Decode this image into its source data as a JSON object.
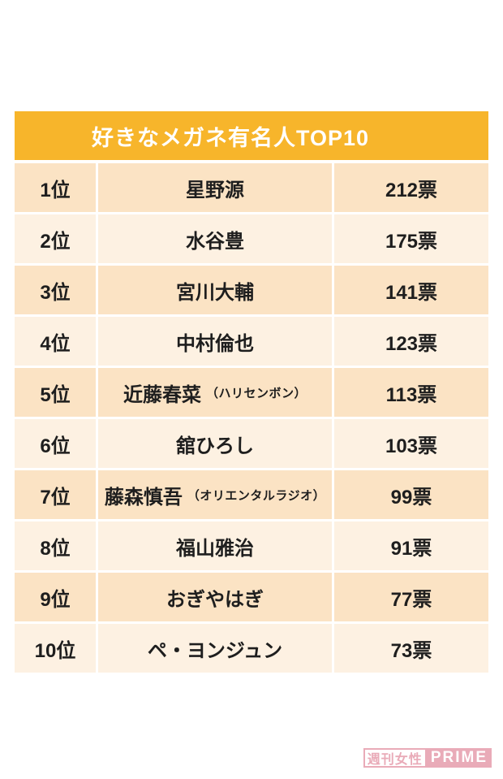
{
  "table": {
    "title": "好きなメガネ有名人TOP10",
    "rows": [
      {
        "rank": "1位",
        "name": "星野源",
        "note": "",
        "votes": "212票"
      },
      {
        "rank": "2位",
        "name": "水谷豊",
        "note": "",
        "votes": "175票"
      },
      {
        "rank": "3位",
        "name": "宮川大輔",
        "note": "",
        "votes": "141票"
      },
      {
        "rank": "4位",
        "name": "中村倫也",
        "note": "",
        "votes": "123票"
      },
      {
        "rank": "5位",
        "name": "近藤春菜",
        "note": "（ハリセンボン）",
        "votes": "113票"
      },
      {
        "rank": "6位",
        "name": "舘ひろし",
        "note": "",
        "votes": "103票"
      },
      {
        "rank": "7位",
        "name": "藤森慎吾",
        "note": "（オリエンタルラジオ）",
        "votes": "99票"
      },
      {
        "rank": "8位",
        "name": "福山雅治",
        "note": "",
        "votes": "91票"
      },
      {
        "rank": "9位",
        "name": "おぎやはぎ",
        "note": "",
        "votes": "77票"
      },
      {
        "rank": "10位",
        "name": "ペ・ヨンジュン",
        "note": "",
        "votes": "73票"
      }
    ]
  },
  "watermark": {
    "magazine": "週刊女性",
    "brand": "PRIME"
  },
  "colors": {
    "header_bg": "#f7b52b",
    "row_odd_bg": "#fbe3c4",
    "row_even_bg": "#fdf1e2",
    "text": "#1e1e1e",
    "header_text": "#ffffff",
    "watermark_pink": "#e8a7b5"
  },
  "chart_data": {
    "type": "table",
    "title": "好きなメガネ有名人TOP10",
    "categories": [
      "星野源",
      "水谷豊",
      "宮川大輔",
      "中村倫也",
      "近藤春菜（ハリセンボン）",
      "舘ひろし",
      "藤森慎吾（オリエンタルラジオ）",
      "福山雅治",
      "おぎやはぎ",
      "ペ・ヨンジュン"
    ],
    "values": [
      212,
      175,
      141,
      123,
      113,
      103,
      99,
      91,
      77,
      73
    ],
    "ranks": [
      1,
      2,
      3,
      4,
      5,
      6,
      7,
      8,
      9,
      10
    ],
    "value_unit": "票"
  }
}
